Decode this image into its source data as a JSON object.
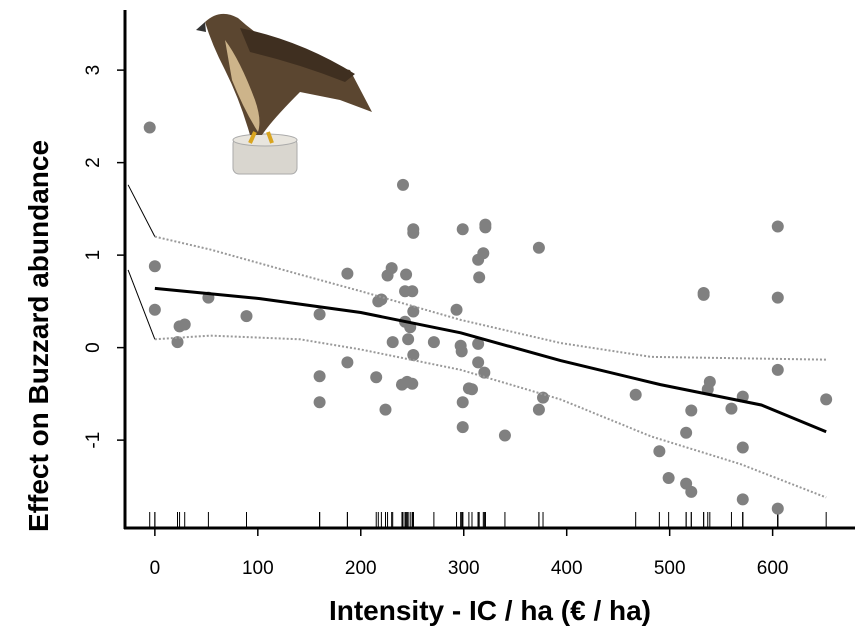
{
  "chart_data": {
    "type": "scatter",
    "x_label": "Intensity - IC / ha (€ / ha)",
    "y_label": "Effect on Buzzard abundance",
    "xlim": [
      -29,
      680
    ],
    "ylim": [
      -1.95,
      3.65
    ],
    "xticks": [
      0,
      100,
      200,
      300,
      400,
      500,
      600
    ],
    "yticks": [
      -1,
      0,
      1,
      2,
      3
    ],
    "point_color": "#808080",
    "line_color": "#000000",
    "band_color": "#999999",
    "rug": true,
    "points": {
      "x": [
        0,
        0,
        -5,
        22,
        24,
        29,
        52,
        89,
        160,
        160,
        160,
        187,
        187,
        215,
        217,
        220,
        224,
        226,
        230,
        231,
        241,
        244,
        243,
        250,
        243,
        246,
        251,
        251,
        251,
        251,
        240,
        245,
        250,
        248,
        271,
        293,
        299,
        297,
        298,
        299,
        299,
        305,
        308,
        314,
        314,
        315,
        314,
        319,
        320,
        321,
        321,
        340,
        373,
        373,
        377,
        467,
        490,
        499,
        516,
        516,
        521,
        533,
        533,
        539,
        537,
        521,
        560,
        571,
        571,
        571,
        605,
        605,
        605,
        605,
        652
      ],
      "y": [
        0.88,
        0.41,
        2.38,
        0.06,
        0.23,
        0.25,
        0.54,
        0.34,
        0.36,
        -0.31,
        -0.59,
        0.8,
        -0.16,
        -0.32,
        0.5,
        0.52,
        -0.67,
        0.78,
        0.86,
        0.06,
        1.76,
        0.79,
        0.61,
        0.61,
        0.28,
        0.09,
        -0.08,
        0.39,
        1.28,
        1.24,
        -0.4,
        -0.37,
        -0.39,
        0.22,
        0.06,
        0.41,
        1.28,
        0.02,
        -0.04,
        -0.59,
        -0.86,
        -0.44,
        -0.45,
        0.04,
        -0.16,
        0.76,
        0.95,
        1.02,
        -0.27,
        1.33,
        1.3,
        -0.95,
        1.08,
        -0.67,
        -0.54,
        -0.51,
        -1.12,
        -1.41,
        -1.47,
        -0.92,
        -0.68,
        0.59,
        0.57,
        -0.37,
        -0.45,
        -1.56,
        -0.66,
        -0.53,
        -1.08,
        -1.64,
        1.31,
        0.54,
        -0.24,
        -1.74,
        -0.56
      ]
    },
    "fit": {
      "x": [
        0,
        102,
        200,
        297,
        394,
        491,
        589,
        652
      ],
      "y": [
        0.64,
        0.53,
        0.38,
        0.16,
        -0.14,
        -0.4,
        -0.62,
        -0.91
      ]
    },
    "upper_band": {
      "x": [
        0,
        54,
        141,
        200,
        297,
        394,
        482,
        652
      ],
      "y": [
        1.2,
        1.06,
        0.79,
        0.61,
        0.3,
        0.05,
        -0.1,
        -0.13
      ]
    },
    "lower_band": {
      "x": [
        0,
        54,
        141,
        200,
        297,
        394,
        482,
        569,
        652
      ],
      "y": [
        0.09,
        0.13,
        0.09,
        -0.02,
        -0.24,
        -0.56,
        -0.96,
        -1.26,
        -1.62
      ]
    },
    "upper_extrapolation": {
      "x": [
        -26,
        0
      ],
      "y": [
        1.76,
        1.2
      ]
    },
    "lower_extrapolation": {
      "x": [
        -26,
        0
      ],
      "y": [
        0.84,
        0.09
      ]
    }
  }
}
